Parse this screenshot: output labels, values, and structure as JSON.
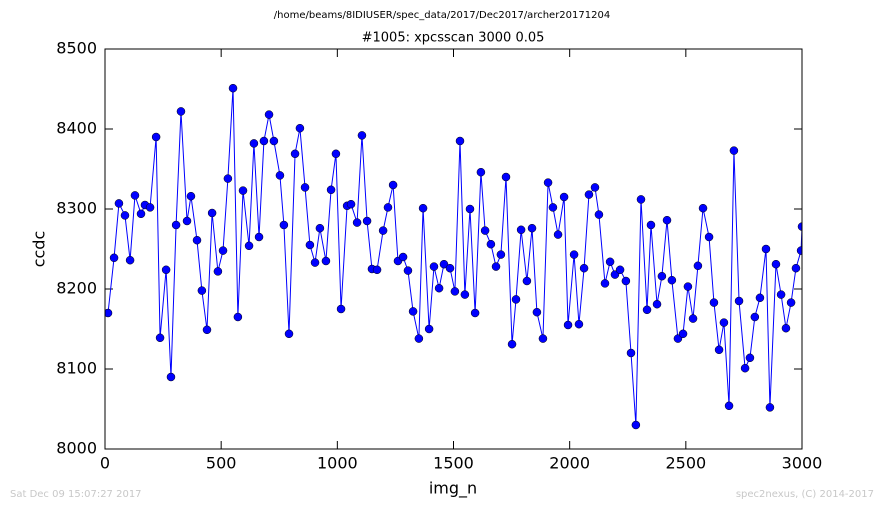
{
  "chart_data": {
    "type": "line",
    "suptitle": "/home/beams/8IDIUSER/spec_data/2017/Dec2017/archer20171204",
    "title": "#1005: xpcsscan 3000 0.05",
    "xlabel": "img_n",
    "ylabel": "ccdc",
    "footer_left": "Sat Dec 09 15:07:27 2017",
    "footer_right": "spec2nexus, (C) 2014-2017",
    "xlim": [
      0,
      3000
    ],
    "xticks": [
      0,
      500,
      1000,
      1500,
      2000,
      2500,
      3000
    ],
    "ylim": [
      8000,
      8500
    ],
    "yticks": [
      8000,
      8100,
      8200,
      8300,
      8400,
      8500
    ],
    "x": [
      13,
      39,
      60,
      86,
      108,
      129,
      155,
      172,
      194,
      220,
      237,
      263,
      284,
      306,
      327,
      353,
      370,
      396,
      417,
      439,
      461,
      486,
      508,
      529,
      551,
      572,
      594,
      620,
      641,
      663,
      684,
      706,
      727,
      753,
      770,
      792,
      818,
      839,
      861,
      882,
      904,
      925,
      951,
      973,
      994,
      1016,
      1042,
      1059,
      1085,
      1106,
      1128,
      1149,
      1171,
      1197,
      1218,
      1240,
      1261,
      1283,
      1304,
      1326,
      1351,
      1369,
      1395,
      1416,
      1438,
      1459,
      1485,
      1506,
      1528,
      1549,
      1571,
      1593,
      1618,
      1636,
      1661,
      1683,
      1704,
      1726,
      1752,
      1769,
      1791,
      1816,
      1838,
      1859,
      1885,
      1907,
      1928,
      1950,
      1976,
      1993,
      2019,
      2040,
      2062,
      2083,
      2109,
      2126,
      2152,
      2174,
      2195,
      2217,
      2242,
      2264,
      2285,
      2307,
      2333,
      2350,
      2376,
      2397,
      2419,
      2440,
      2466,
      2488,
      2509,
      2531,
      2552,
      2574,
      2600,
      2621,
      2643,
      2664,
      2686,
      2707,
      2729,
      2755,
      2776,
      2797,
      2819,
      2845,
      2862,
      2888,
      2910,
      2931,
      2953,
      2974,
      2996,
      3000
    ],
    "series": [
      {
        "name": "ccdc",
        "color": "#0000ff",
        "values": [
          8170,
          8239,
          8307,
          8292,
          8236,
          8317,
          8294,
          8305,
          8302,
          8390,
          8139,
          8224,
          8090,
          8280,
          8422,
          8285,
          8316,
          8261,
          8198,
          8149,
          8295,
          8222,
          8248,
          8338,
          8451,
          8165,
          8323,
          8254,
          8382,
          8265,
          8385,
          8418,
          8385,
          8342,
          8280,
          8144,
          8369,
          8401,
          8327,
          8255,
          8233,
          8276,
          8235,
          8324,
          8369,
          8175,
          8304,
          8306,
          8283,
          8392,
          8285,
          8225,
          8224,
          8273,
          8302,
          8330,
          8235,
          8240,
          8223,
          8172,
          8138,
          8301,
          8150,
          8228,
          8201,
          8231,
          8226,
          8197,
          8385,
          8193,
          8300,
          8170,
          8346,
          8273,
          8256,
          8228,
          8243,
          8340,
          8131,
          8187,
          8274,
          8210,
          8276,
          8171,
          8138,
          8333,
          8302,
          8268,
          8315,
          8155,
          8243,
          8156,
          8226,
          8318,
          8327,
          8293,
          8207,
          8234,
          8218,
          8224,
          8210,
          8120,
          8030,
          8312,
          8174,
          8280,
          8181,
          8216,
          8286,
          8211,
          8138,
          8144,
          8203,
          8163,
          8229,
          8301,
          8265,
          8183,
          8124,
          8158,
          8054,
          8373,
          8185,
          8101,
          8114,
          8165,
          8189,
          8250,
          8052,
          8231,
          8193,
          8151,
          8183,
          8226,
          8248,
          8278
        ]
      }
    ]
  }
}
